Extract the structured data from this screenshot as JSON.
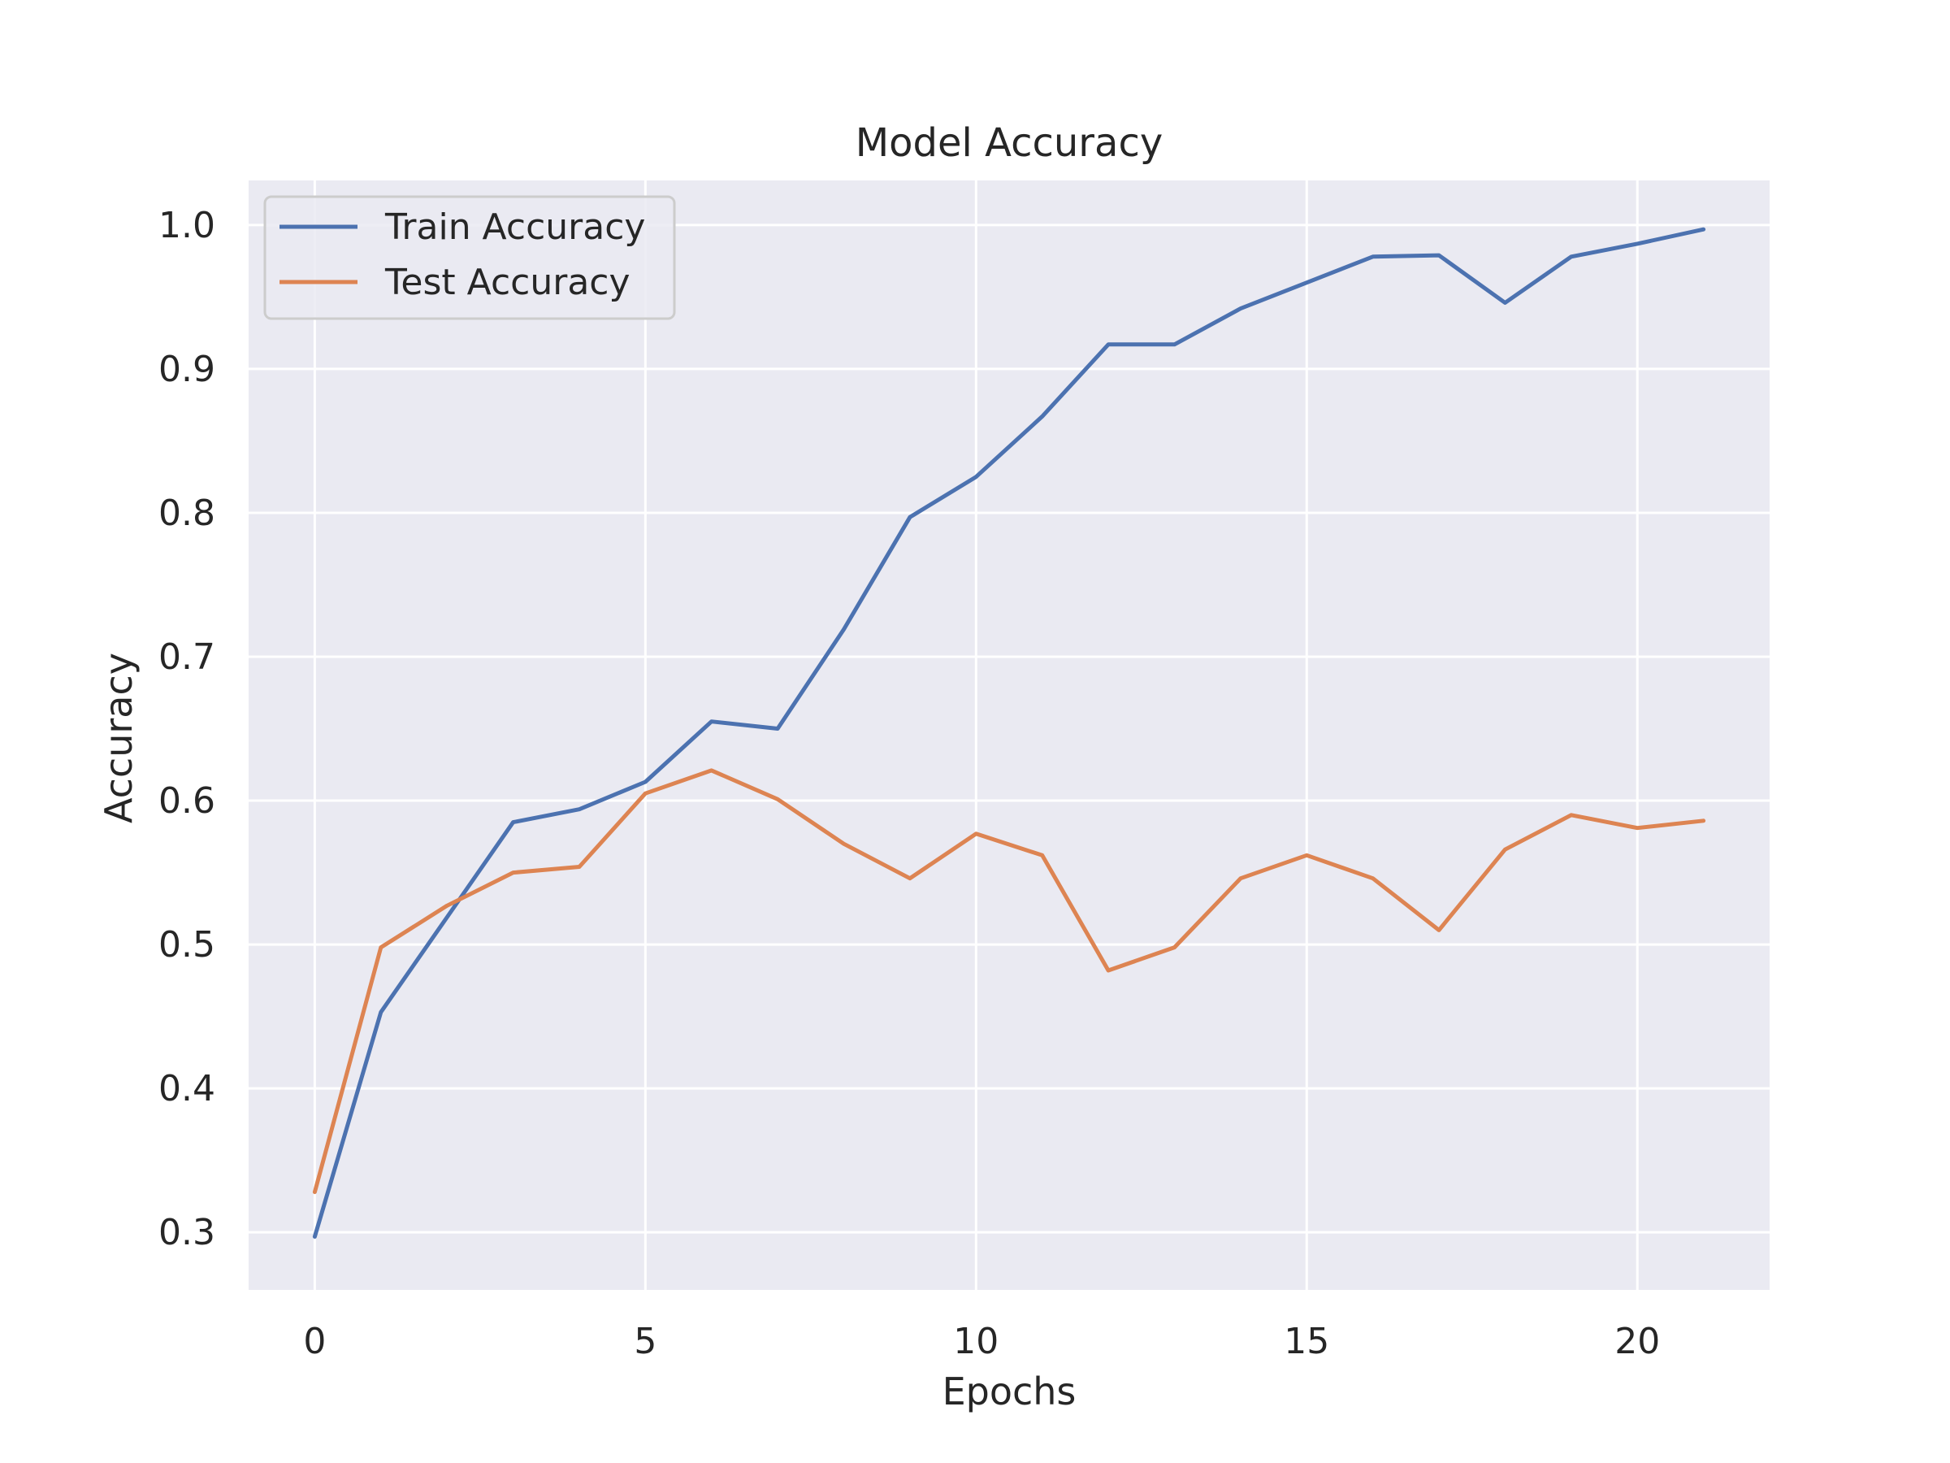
{
  "chart_data": {
    "type": "line",
    "title": "Model Accuracy",
    "xlabel": "Epochs",
    "ylabel": "Accuracy",
    "xlim": [
      -1,
      22
    ],
    "ylim": [
      0.26,
      1.031
    ],
    "xticks": [
      0,
      5,
      10,
      15,
      20
    ],
    "xtick_labels": [
      "0",
      "5",
      "10",
      "15",
      "20"
    ],
    "yticks": [
      0.3,
      0.4,
      0.5,
      0.6,
      0.7,
      0.8,
      0.9,
      1.0
    ],
    "ytick_labels": [
      "0.3",
      "0.4",
      "0.5",
      "0.6",
      "0.7",
      "0.8",
      "0.9",
      "1.0"
    ],
    "grid": true,
    "legend_position": "top-left",
    "x": [
      0,
      1,
      2,
      3,
      4,
      5,
      6,
      7,
      8,
      9,
      10,
      11,
      12,
      13,
      14,
      15,
      16,
      17,
      18,
      19,
      20,
      21
    ],
    "series": [
      {
        "name": "Train Accuracy",
        "color": "#4c72b0",
        "values": [
          0.297,
          0.453,
          0.519,
          0.585,
          0.594,
          0.613,
          0.655,
          0.65,
          0.719,
          0.797,
          0.825,
          0.867,
          0.917,
          0.917,
          0.942,
          0.96,
          0.978,
          0.979,
          0.946,
          0.978,
          0.987,
          0.997
        ]
      },
      {
        "name": "Test Accuracy",
        "color": "#dd8452",
        "values": [
          0.328,
          0.498,
          0.527,
          0.55,
          0.554,
          0.605,
          0.621,
          0.601,
          0.57,
          0.546,
          0.577,
          0.562,
          0.482,
          0.498,
          0.546,
          0.562,
          0.546,
          0.51,
          0.566,
          0.59,
          0.581,
          0.586
        ]
      }
    ]
  },
  "colors": {
    "plot_background": "#eaeaf2",
    "grid": "#ffffff",
    "text": "#262626"
  }
}
